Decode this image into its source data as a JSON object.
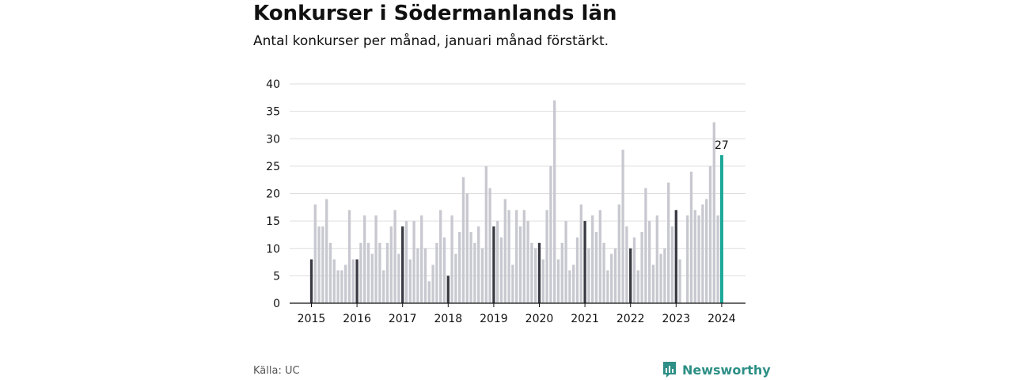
{
  "title": "Konkurser i Södermanlands län",
  "subtitle": "Antal konkurser per månad, januari månad förstärkt.",
  "source": "Källa: UC",
  "brand": "Newsworthy",
  "colors": {
    "bar": "#c8c8d0",
    "january": "#3a3a44",
    "latest": "#1aa898",
    "grid": "#dddddd",
    "brand": "#2d8f86"
  },
  "chart_data": {
    "type": "bar",
    "title": "Konkurser i Södermanlands län",
    "subtitle": "Antal konkurser per månad, januari månad förstärkt.",
    "ylim": [
      0,
      40
    ],
    "yticks": [
      0,
      5,
      10,
      15,
      20,
      25,
      30,
      35,
      40
    ],
    "xticks": [
      "2015",
      "2016",
      "2017",
      "2018",
      "2019",
      "2020",
      "2021",
      "2022",
      "2023",
      "2024"
    ],
    "start": "2015-01",
    "grid": true,
    "highlight": "january",
    "annotation": {
      "label": "27",
      "month": "2024-01"
    },
    "series": [
      {
        "year": "2015",
        "values": [
          8,
          18,
          14,
          14,
          19,
          11,
          8,
          6,
          6,
          7,
          17,
          8
        ]
      },
      {
        "year": "2016",
        "values": [
          8,
          11,
          16,
          11,
          9,
          16,
          11,
          6,
          11,
          14,
          17,
          9
        ]
      },
      {
        "year": "2017",
        "values": [
          14,
          15,
          8,
          15,
          10,
          16,
          10,
          4,
          7,
          11,
          17,
          12
        ]
      },
      {
        "year": "2018",
        "values": [
          5,
          16,
          9,
          13,
          23,
          20,
          13,
          11,
          14,
          10,
          25,
          21
        ]
      },
      {
        "year": "2019",
        "values": [
          14,
          15,
          12,
          19,
          17,
          7,
          17,
          14,
          17,
          15,
          11,
          10
        ]
      },
      {
        "year": "2020",
        "values": [
          11,
          8,
          17,
          25,
          37,
          8,
          11,
          15,
          6,
          7,
          12,
          18
        ]
      },
      {
        "year": "2021",
        "values": [
          15,
          10,
          16,
          13,
          17,
          11,
          6,
          9,
          10,
          18,
          28,
          14
        ]
      },
      {
        "year": "2022",
        "values": [
          10,
          12,
          6,
          13,
          21,
          15,
          7,
          16,
          9,
          10,
          22,
          14
        ]
      },
      {
        "year": "2023",
        "values": [
          17,
          8,
          0,
          16,
          24,
          17,
          16,
          18,
          19,
          25,
          33,
          16
        ]
      },
      {
        "year": "2024",
        "values": [
          27
        ]
      }
    ]
  }
}
